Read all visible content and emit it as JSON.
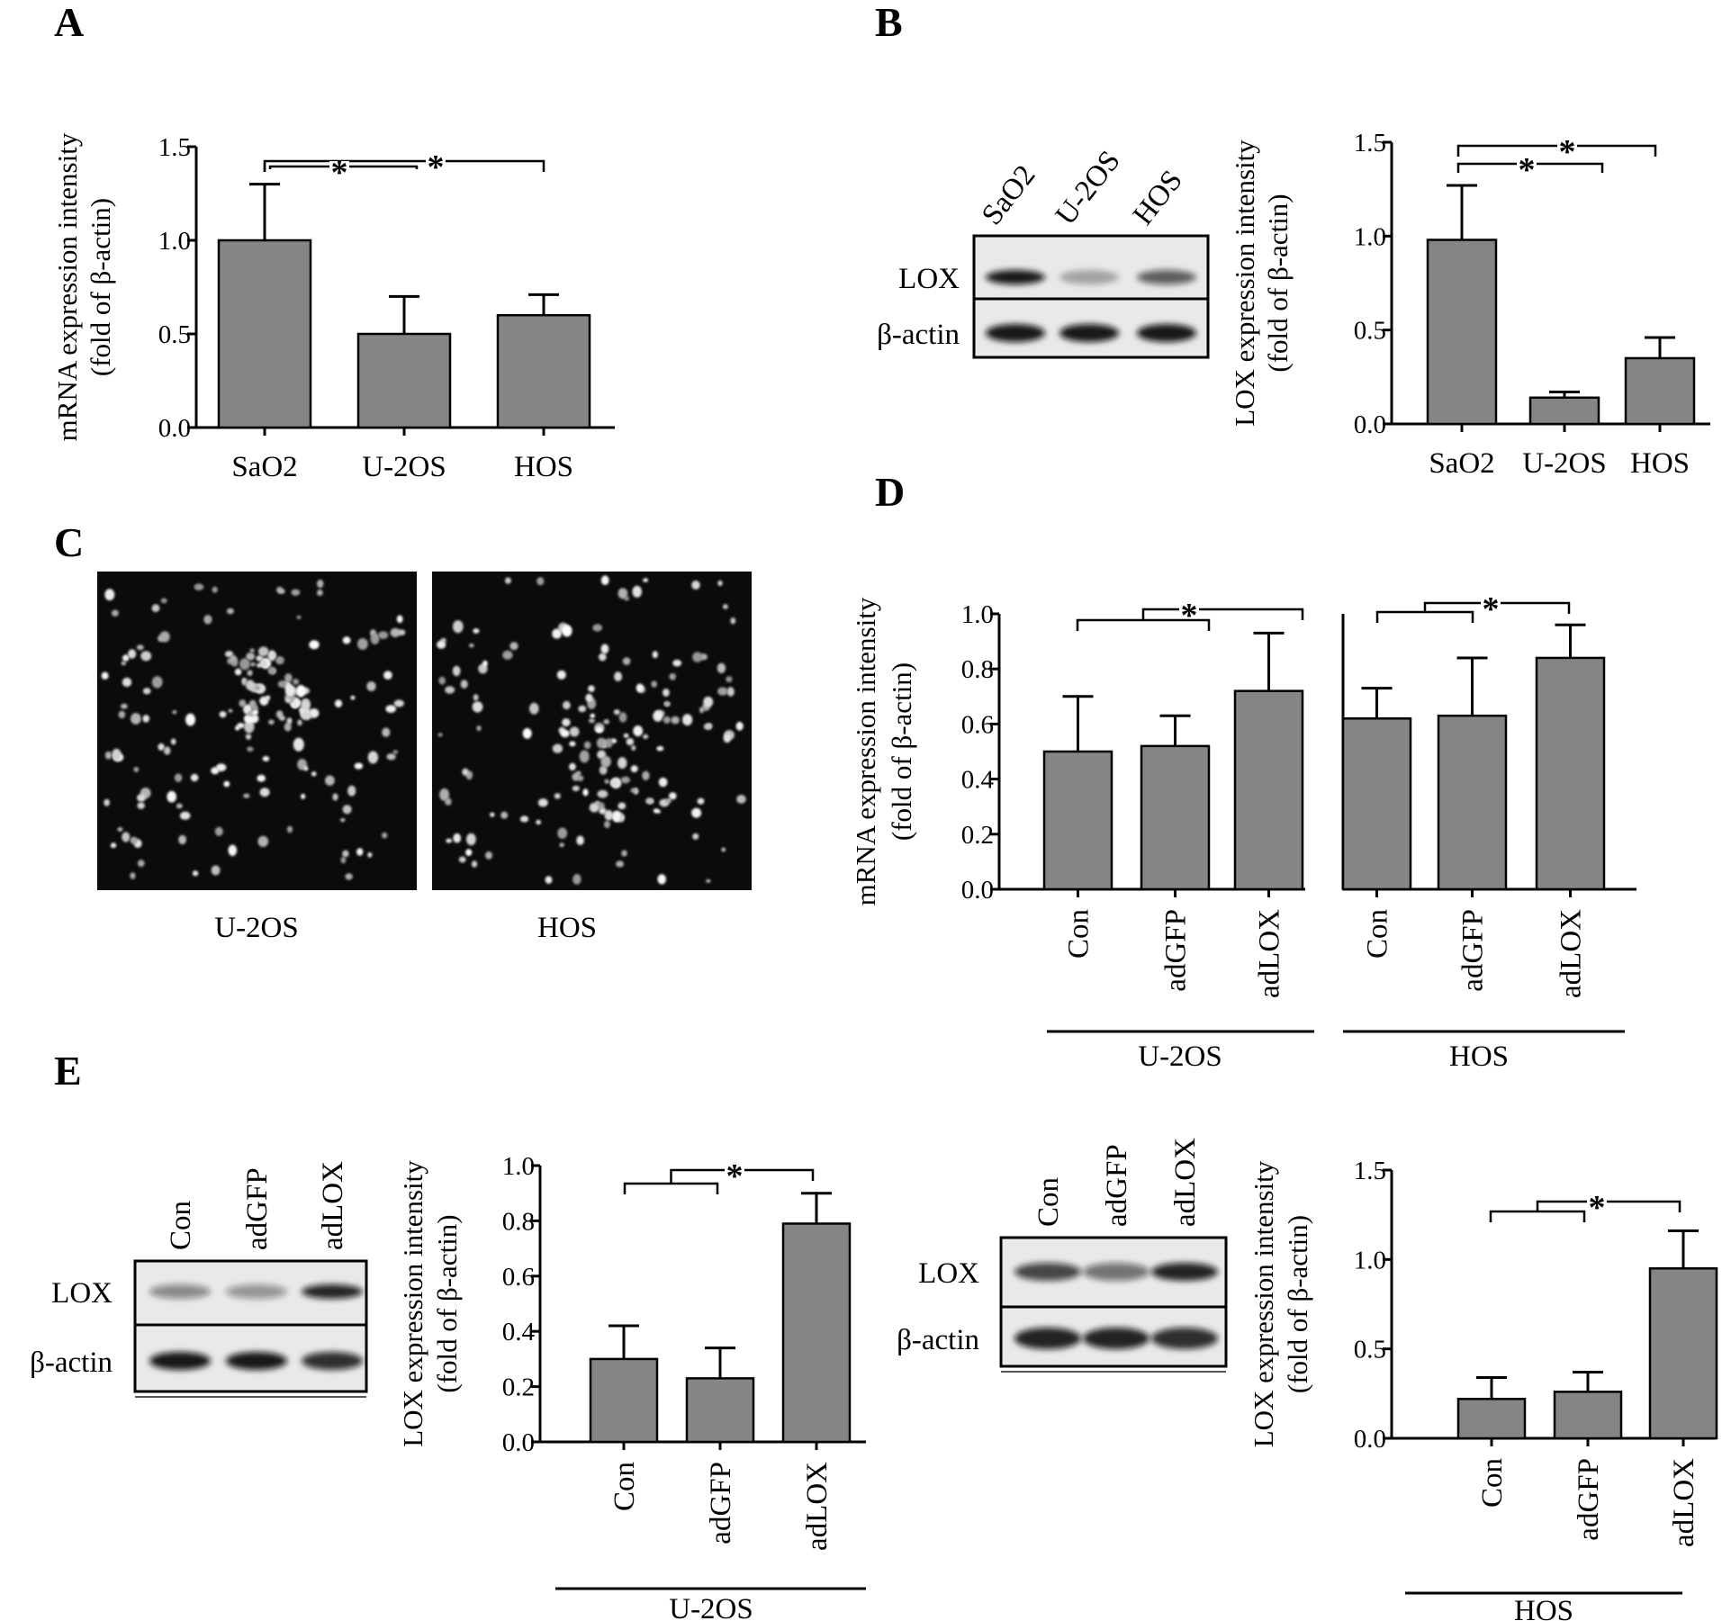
{
  "panels": {
    "A": "A",
    "B": "B",
    "C": "C",
    "D": "D",
    "E": "E"
  },
  "significance_mark": "*",
  "chart_data": [
    {
      "id": "A",
      "type": "bar",
      "categories": [
        "SaO2",
        "U-2OS",
        "HOS"
      ],
      "values": [
        1.0,
        0.5,
        0.6
      ],
      "errors": [
        0.3,
        0.2,
        0.11
      ],
      "ylim": [
        0,
        1.5
      ],
      "yticks": [
        "0.0",
        "0.5",
        "1.0",
        "1.5"
      ],
      "ylabel_line1": "mRNA expression intensity",
      "ylabel_line2": "(fold of β-actin)",
      "bar_color": "#858585",
      "comparisons": [
        "SaO2 vs U-2OS *",
        "SaO2 vs HOS *"
      ]
    },
    {
      "id": "B",
      "type": "bar",
      "categories": [
        "SaO2",
        "U-2OS",
        "HOS"
      ],
      "values": [
        0.98,
        0.14,
        0.35
      ],
      "errors": [
        0.29,
        0.03,
        0.11
      ],
      "ylim": [
        0,
        1.5
      ],
      "yticks": [
        "0.0",
        "0.5",
        "1.0",
        "1.5"
      ],
      "ylabel_line1": "LOX expression intensity",
      "ylabel_line2": "(fold of β-actin)",
      "bar_color": "#858585",
      "comparisons": [
        "SaO2 vs U-2OS *",
        "SaO2 vs HOS *"
      ]
    },
    {
      "id": "D",
      "type": "bar",
      "groups": [
        {
          "name": "U-2OS",
          "categories": [
            "Con",
            "adGFP",
            "adLOX"
          ],
          "values": [
            0.5,
            0.52,
            0.72
          ],
          "errors": [
            0.2,
            0.11,
            0.21
          ]
        },
        {
          "name": "HOS",
          "categories": [
            "Con",
            "adGFP",
            "adLOX"
          ],
          "values": [
            0.62,
            0.63,
            0.84
          ],
          "errors": [
            0.11,
            0.21,
            0.12
          ]
        }
      ],
      "ylim": [
        0,
        1.0
      ],
      "yticks": [
        "0.0",
        "0.2",
        "0.4",
        "0.6",
        "0.8",
        "1.0"
      ],
      "ylabel_line1": "mRNA expression intensity",
      "ylabel_line2": "(fold of β-actin)",
      "bar_color": "#858585",
      "comparisons": [
        "Con, adGFP vs adLOX *"
      ]
    },
    {
      "id": "E1",
      "type": "bar",
      "group": "U-2OS",
      "categories": [
        "Con",
        "adGFP",
        "adLOX"
      ],
      "values": [
        0.3,
        0.23,
        0.79
      ],
      "errors": [
        0.12,
        0.11,
        0.11
      ],
      "ylim": [
        0,
        1.0
      ],
      "yticks": [
        "0.0",
        "0.2",
        "0.4",
        "0.6",
        "0.8",
        "1.0"
      ],
      "ylabel_line1": "LOX expression intensity",
      "ylabel_line2": "(fold of β-actin)",
      "bar_color": "#858585",
      "comparisons": [
        "Con, adGFP vs adLOX *"
      ]
    },
    {
      "id": "E2",
      "type": "bar",
      "group": "HOS",
      "categories": [
        "Con",
        "adGFP",
        "adLOX"
      ],
      "values": [
        0.22,
        0.26,
        0.95
      ],
      "errors": [
        0.12,
        0.11,
        0.21
      ],
      "ylim": [
        0,
        1.5
      ],
      "yticks": [
        "0.0",
        "0.5",
        "1.0",
        "1.5"
      ],
      "ylabel_line1": "LOX expression intensity",
      "ylabel_line2": "(fold of β-actin)",
      "bar_color": "#858585",
      "comparisons": [
        "Con, adGFP vs adLOX *"
      ]
    }
  ],
  "blot_B": {
    "lanes": [
      "SaO2",
      "U-2OS",
      "HOS"
    ],
    "rows": [
      "LOX",
      "β-actin"
    ],
    "lox_band_intensity": [
      0.95,
      0.3,
      0.65
    ],
    "actin_band_intensity": [
      0.95,
      0.95,
      0.95
    ]
  },
  "blot_E1": {
    "lanes": [
      "Con",
      "adGFP",
      "adLOX"
    ],
    "rows": [
      "LOX",
      "β-actin"
    ],
    "lox_band_intensity": [
      0.45,
      0.4,
      0.9
    ],
    "actin_band_intensity": [
      0.95,
      0.95,
      0.85
    ]
  },
  "blot_E2": {
    "lanes": [
      "Con",
      "adGFP",
      "adLOX"
    ],
    "rows": [
      "LOX",
      "β-actin"
    ],
    "lox_band_intensity": [
      0.75,
      0.55,
      0.9
    ],
    "actin_band_intensity": [
      0.9,
      0.9,
      0.85
    ]
  },
  "micrographs": [
    {
      "label": "U-2OS"
    },
    {
      "label": "HOS"
    }
  ]
}
